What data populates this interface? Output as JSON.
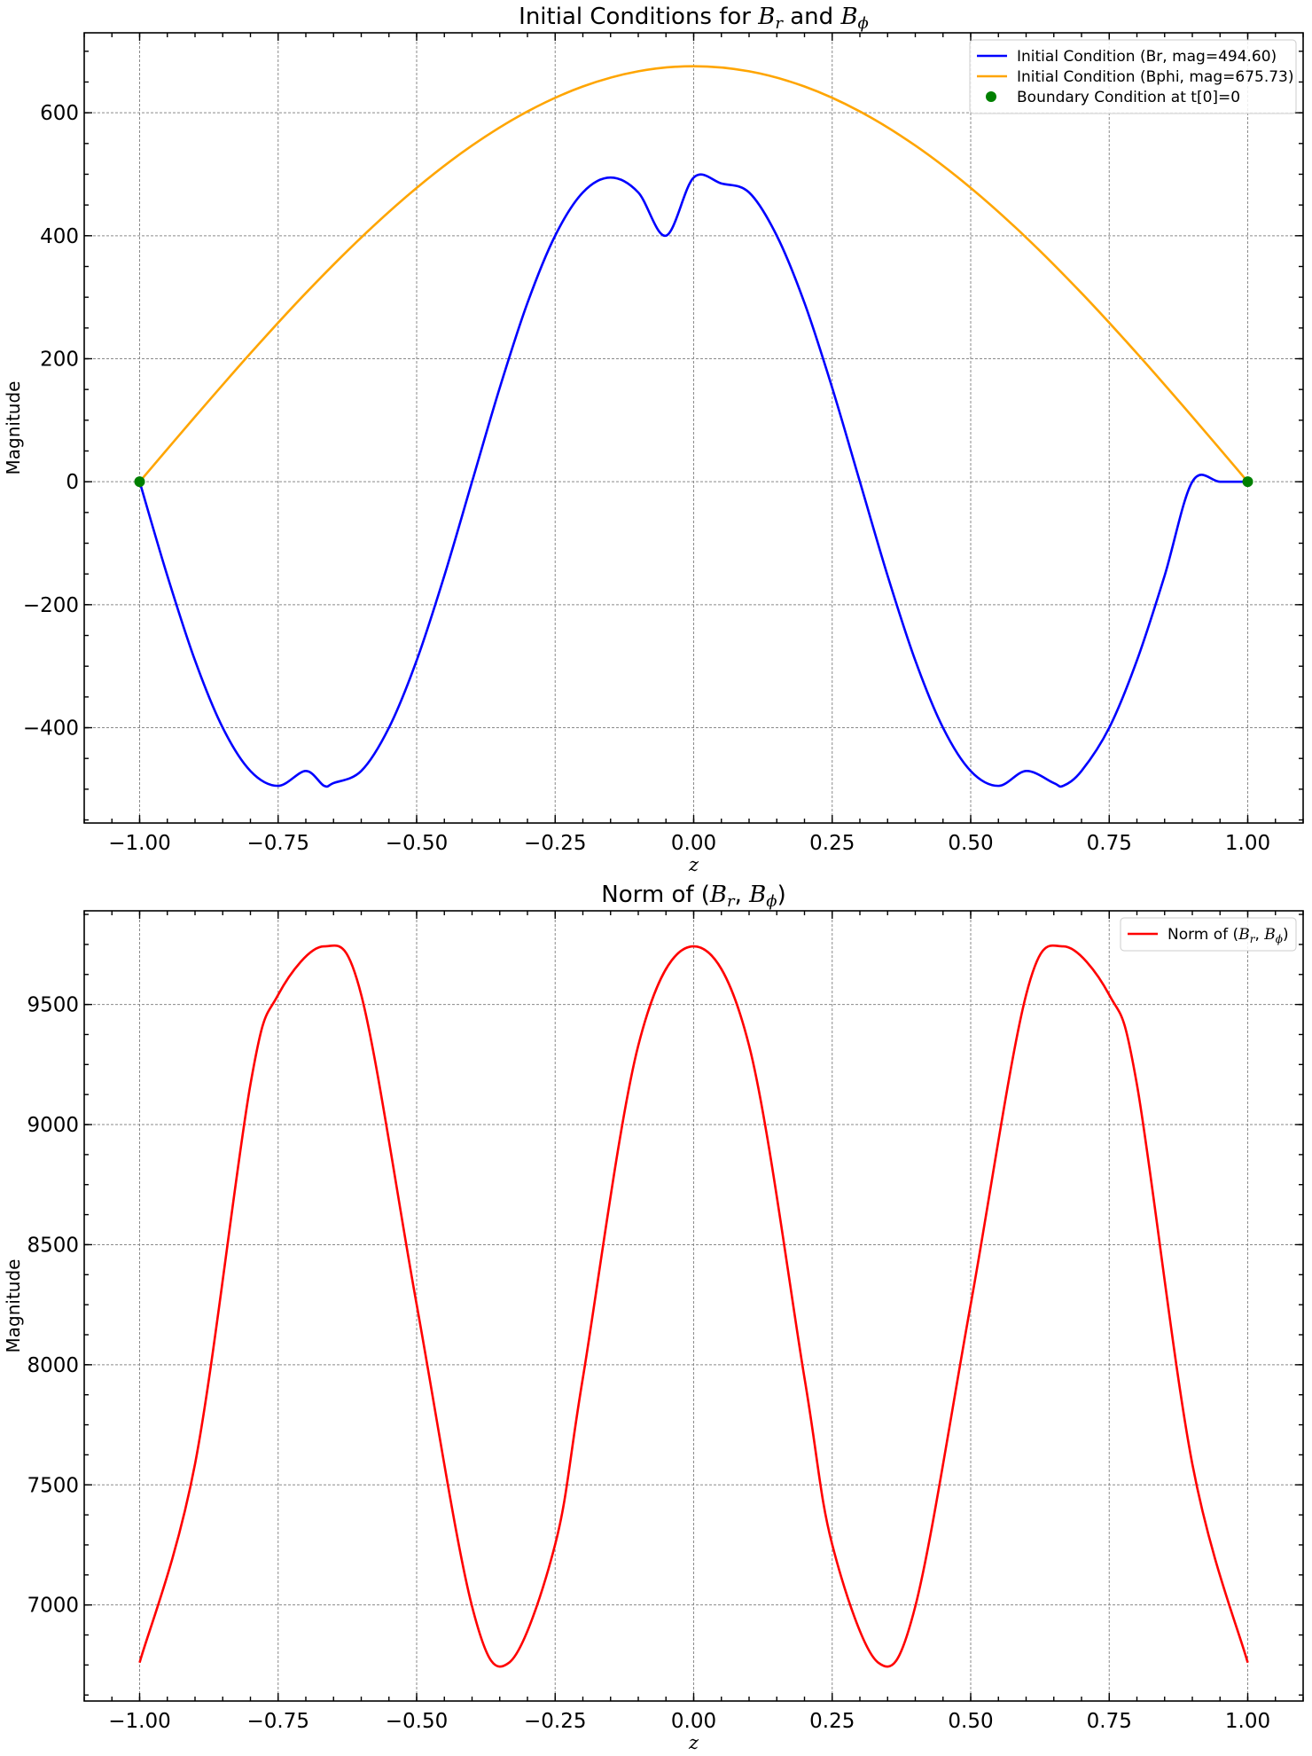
{
  "chart_data": [
    {
      "type": "line",
      "title_parts": [
        {
          "text": "Initial Conditions for ",
          "italic": false,
          "sub": false
        },
        {
          "text": "B",
          "italic": true,
          "sub": false
        },
        {
          "text": "r",
          "italic": true,
          "sub": true
        },
        {
          "text": " and ",
          "italic": false,
          "sub": false
        },
        {
          "text": "B",
          "italic": true,
          "sub": false
        },
        {
          "text": "ϕ",
          "italic": true,
          "sub": true
        }
      ],
      "xlabel": "z",
      "ylabel": "Magnitude",
      "xlim": [
        -1.1,
        1.1
      ],
      "ylim": [
        -555,
        730
      ],
      "xticks": [
        -1.0,
        -0.75,
        -0.5,
        -0.25,
        0.0,
        0.25,
        0.5,
        0.75,
        1.0
      ],
      "xtick_labels": [
        "−1.00",
        "−0.75",
        "−0.50",
        "−0.25",
        "0.00",
        "0.25",
        "0.50",
        "0.75",
        "1.00"
      ],
      "yticks": [
        -400,
        -200,
        0,
        200,
        400,
        600
      ],
      "ytick_labels": [
        "−400",
        "−200",
        "0",
        "200",
        "400",
        "600"
      ],
      "grid": true,
      "legend_position": "top-right",
      "series": [
        {
          "name": "Initial Condition (Br, mag=494.60)",
          "kind": "line",
          "color": "#0000ff",
          "x": [
            -1.0,
            -0.95,
            -0.9,
            -0.85,
            -0.8,
            -0.75,
            -0.7,
            -0.667,
            -0.65,
            -0.6,
            -0.55,
            -0.5,
            -0.45,
            -0.4,
            -0.35,
            -0.3,
            -0.25,
            -0.2,
            -0.15,
            -0.1,
            -0.05,
            0.0,
            0.05,
            0.1,
            0.15,
            0.2,
            0.25,
            0.3,
            0.35,
            0.4,
            0.45,
            0.5,
            0.55,
            0.6,
            0.65,
            0.667,
            0.7,
            0.75,
            0.8,
            0.85,
            0.9,
            0.95,
            1.0
          ],
          "y": [
            0,
            -152.8,
            -290.7,
            -400.1,
            -470.4,
            -494.6,
            -470.4,
            -494.6,
            -490.0,
            -470.4,
            -400.1,
            -290.7,
            -152.8,
            0,
            152.8,
            290.7,
            400.1,
            470.4,
            494.6,
            470.4,
            400.1,
            494.6,
            485.0,
            470.4,
            400.1,
            290.7,
            152.8,
            0,
            -152.8,
            -290.7,
            -400.1,
            -470.4,
            -494.6,
            -470.4,
            -490.0,
            -494.6,
            -470.4,
            -400.1,
            -290.7,
            -152.8,
            0,
            0,
            0
          ]
        },
        {
          "name": "Initial Condition (Bphi, mag=675.73)",
          "kind": "line",
          "color": "#ffa500",
          "x": [
            -1.0,
            -0.9,
            -0.8,
            -0.7,
            -0.6,
            -0.5,
            -0.4,
            -0.3,
            -0.2,
            -0.1,
            0.0,
            0.1,
            0.2,
            0.3,
            0.4,
            0.5,
            0.6,
            0.7,
            0.8,
            0.9,
            1.0
          ],
          "y": [
            0,
            105.7,
            208.8,
            306.8,
            397.2,
            477.8,
            546.7,
            602.1,
            642.7,
            667.4,
            675.7,
            667.4,
            642.7,
            602.1,
            546.7,
            477.8,
            397.2,
            306.8,
            208.8,
            105.7,
            0
          ]
        },
        {
          "name": "Boundary Condition at t[0]=0",
          "kind": "scatter",
          "color": "#008000",
          "x": [
            -1.0,
            1.0
          ],
          "y": [
            0,
            0
          ]
        }
      ]
    },
    {
      "type": "line",
      "title_parts": [
        {
          "text": "Norm of (",
          "italic": false,
          "sub": false
        },
        {
          "text": "B",
          "italic": true,
          "sub": false
        },
        {
          "text": "r",
          "italic": true,
          "sub": true
        },
        {
          "text": ", ",
          "italic": false,
          "sub": false
        },
        {
          "text": "B",
          "italic": true,
          "sub": false
        },
        {
          "text": "ϕ",
          "italic": true,
          "sub": true
        },
        {
          "text": ")",
          "italic": false,
          "sub": false
        }
      ],
      "xlabel": "z",
      "ylabel": "Magnitude",
      "xlim": [
        -1.1,
        1.1
      ],
      "ylim": [
        6600,
        9890
      ],
      "xticks": [
        -1.0,
        -0.75,
        -0.5,
        -0.25,
        0.0,
        0.25,
        0.5,
        0.75,
        1.0
      ],
      "xtick_labels": [
        "−1.00",
        "−0.75",
        "−0.50",
        "−0.25",
        "0.00",
        "0.25",
        "0.50",
        "0.75",
        "1.00"
      ],
      "yticks": [
        7000,
        7500,
        8000,
        8500,
        9000,
        9500
      ],
      "ytick_labels": [
        "7000",
        "7500",
        "8000",
        "8500",
        "9000",
        "9500"
      ],
      "grid": true,
      "legend_position": "top-right",
      "series": [
        {
          "name_parts": [
            {
              "text": "Norm of (",
              "italic": false,
              "sub": false
            },
            {
              "text": "B",
              "italic": true,
              "sub": false
            },
            {
              "text": "r",
              "italic": true,
              "sub": true
            },
            {
              "text": ", ",
              "italic": false,
              "sub": false
            },
            {
              "text": "B",
              "italic": true,
              "sub": false
            },
            {
              "text": "ϕ",
              "italic": true,
              "sub": true
            },
            {
              "text": ")",
              "italic": false,
              "sub": false
            }
          ],
          "kind": "line",
          "color": "#ff0000",
          "x": [
            -1.0,
            -0.9,
            -0.8,
            -0.75,
            -0.667,
            -0.6,
            -0.5,
            -0.4,
            -0.333,
            -0.25,
            -0.2,
            -0.1,
            0.0,
            0.1,
            0.2,
            0.25,
            0.333,
            0.4,
            0.5,
            0.6,
            0.667,
            0.75,
            0.8,
            0.9,
            1.0
          ],
          "y": [
            6760,
            7587,
            9167,
            9540,
            9742,
            9540,
            8251,
            6994,
            6760,
            7252,
            7945,
            9329,
            9742,
            9329,
            7945,
            7252,
            6760,
            6994,
            8251,
            9540,
            9742,
            9540,
            9167,
            7587,
            6760
          ]
        }
      ]
    }
  ]
}
